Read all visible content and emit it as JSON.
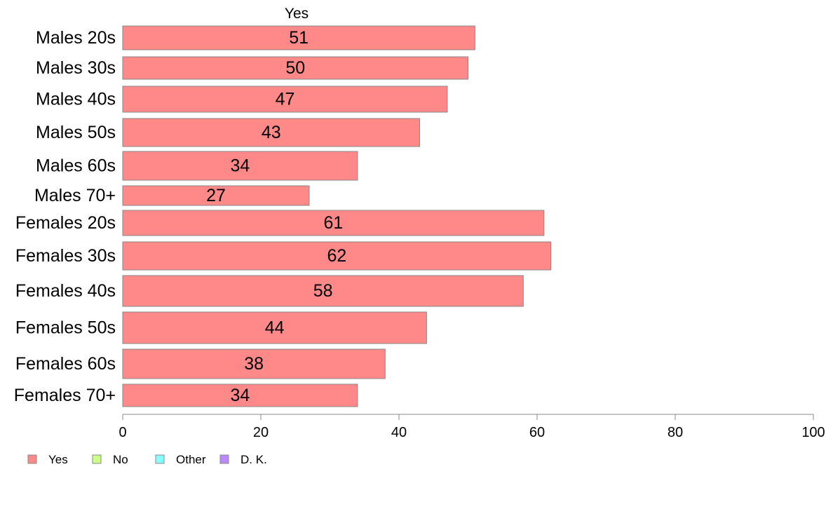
{
  "chart_data": {
    "type": "bar",
    "orientation": "horizontal",
    "title": "Yes",
    "categories": [
      "Males 20s",
      "Males 30s",
      "Males 40s",
      "Males 50s",
      "Males 60s",
      "Males 70+",
      "Females 20s",
      "Females 30s",
      "Females 40s",
      "Females 50s",
      "Females 60s",
      "Females 70+"
    ],
    "series": [
      {
        "name": "Yes",
        "color": "#ff8888",
        "values": [
          51,
          50,
          47,
          43,
          34,
          27,
          61,
          62,
          58,
          44,
          38,
          34
        ]
      }
    ],
    "value_labels": [
      "51",
      "50",
      "47",
      "43",
      "34",
      "27",
      "61",
      "62",
      "58",
      "44",
      "38",
      "34"
    ],
    "xlim": [
      0,
      100
    ],
    "xticks": [
      0,
      20,
      40,
      60,
      80,
      100
    ],
    "xtick_labels": [
      "0",
      "20",
      "40",
      "60",
      "80",
      "100"
    ],
    "grid": false,
    "legend_position": "bottom-left",
    "legend": [
      {
        "label": "Yes",
        "color": "#ff8888"
      },
      {
        "label": "No",
        "color": "#ccff88"
      },
      {
        "label": "Other",
        "color": "#88ffff"
      },
      {
        "label": "D. K.",
        "color": "#bb88ff"
      }
    ],
    "bar_edge_color": "#888888"
  }
}
